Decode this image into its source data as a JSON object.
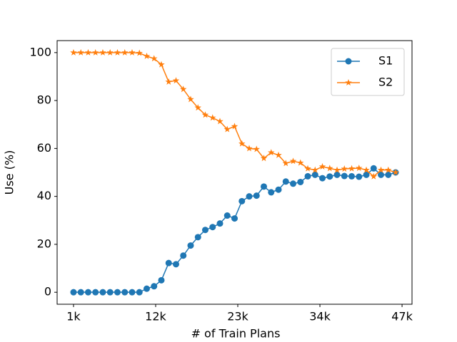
{
  "chart_data": {
    "type": "line",
    "x_label": "# of Train Plans",
    "y_label": "Use (%)",
    "x": [
      0,
      1,
      2,
      3,
      4,
      5,
      6,
      7,
      8,
      9,
      10,
      11,
      12,
      13,
      14,
      15,
      16,
      17,
      18,
      19,
      20,
      21,
      22,
      23,
      24,
      25,
      26,
      27,
      28,
      29,
      30,
      31,
      32,
      33,
      34,
      35,
      36,
      37,
      38,
      39,
      40,
      41,
      42,
      43,
      44
    ],
    "series": [
      {
        "name": "S1",
        "color": "#1f77b4",
        "marker": "circle",
        "values": [
          0,
          0,
          0,
          0,
          0,
          0,
          0,
          0,
          0,
          0,
          1.5,
          2.5,
          5,
          12.2,
          11.7,
          15.3,
          19.5,
          23,
          26,
          27.2,
          28.7,
          32,
          30.8,
          38,
          40,
          40.3,
          44.1,
          41.7,
          42.8,
          46.2,
          45.3,
          46,
          48.4,
          49,
          47.6,
          48.3,
          49,
          48.5,
          48.4,
          48.2,
          49,
          51.7,
          49,
          49,
          50
        ]
      },
      {
        "name": "S2",
        "color": "#ff7f0e",
        "marker": "star",
        "values": [
          100,
          100,
          100,
          100,
          100,
          100,
          100,
          100,
          100,
          99.8,
          98.5,
          97.5,
          95,
          87.8,
          88.3,
          84.7,
          80.5,
          77,
          74,
          72.8,
          71.3,
          68,
          69.2,
          62,
          60,
          59.7,
          55.9,
          58.3,
          57.2,
          53.8,
          54.7,
          54,
          51.6,
          51,
          52.4,
          51.7,
          51,
          51.5,
          51.6,
          51.8,
          51,
          48.3,
          51,
          51,
          50
        ]
      }
    ],
    "xlim": [
      -2.24,
      46.24
    ],
    "ylim": [
      -5,
      105
    ],
    "xticks": [
      {
        "value": 0,
        "label": "1k"
      },
      {
        "value": 11.22,
        "label": "12k"
      },
      {
        "value": 22.44,
        "label": "23k"
      },
      {
        "value": 33.66,
        "label": "34k"
      },
      {
        "value": 44.88,
        "label": "47k"
      }
    ],
    "yticks": [
      0,
      20,
      40,
      60,
      80,
      100
    ],
    "legend": "upper right"
  }
}
